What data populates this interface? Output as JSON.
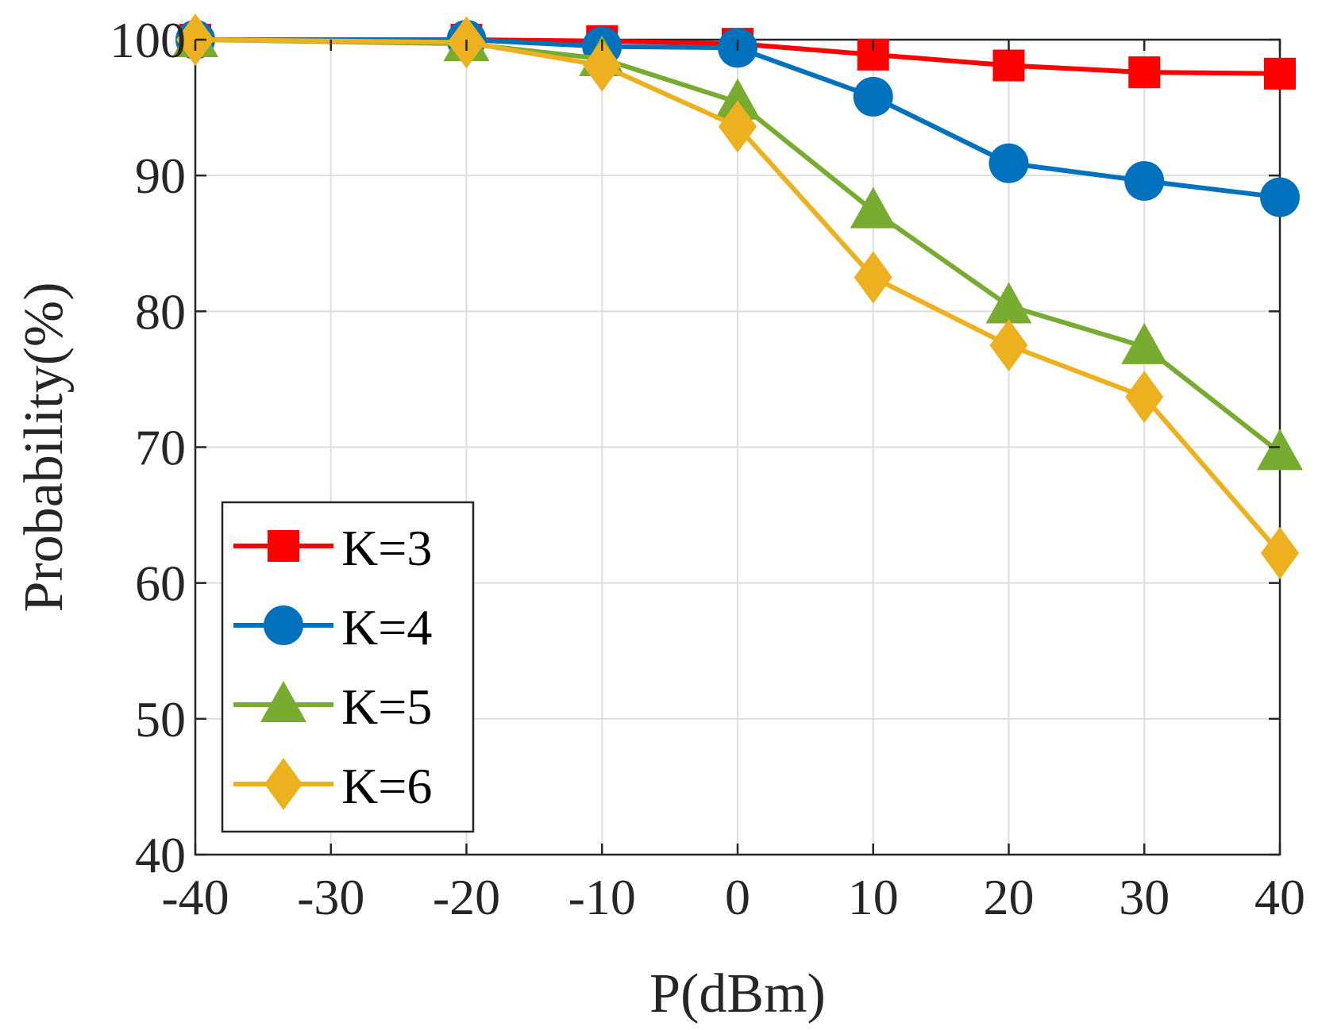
{
  "chart_data": {
    "type": "line",
    "title": "",
    "xlabel": "P(dBm)",
    "ylabel": "Probability(%)",
    "xlim": [
      -40,
      40
    ],
    "ylim": [
      40,
      100
    ],
    "xticks": [
      -40,
      -30,
      -20,
      -10,
      0,
      10,
      20,
      30,
      40
    ],
    "xtick_labels": [
      "-40",
      "-30",
      "-20",
      "-10",
      "0",
      "10",
      "20",
      "30",
      "40"
    ],
    "yticks": [
      40,
      50,
      60,
      70,
      80,
      90,
      100
    ],
    "ytick_labels": [
      "40",
      "50",
      "60",
      "70",
      "80",
      "90",
      "100"
    ],
    "grid": true,
    "legend_position": "bottom-left",
    "x": [
      -40,
      -20,
      -10,
      0,
      10,
      20,
      30,
      40
    ],
    "series": [
      {
        "name": "K=3",
        "color": "#ff0000",
        "marker": "square",
        "values": [
          100,
          100,
          99.9,
          99.7,
          98.9,
          98.1,
          97.6,
          97.5
        ]
      },
      {
        "name": "K=4",
        "color": "#0072bd",
        "marker": "circle",
        "values": [
          100,
          100,
          99.5,
          99.4,
          95.8,
          90.9,
          89.6,
          88.4
        ]
      },
      {
        "name": "K=5",
        "color": "#77ac30",
        "marker": "triangle",
        "values": [
          100,
          99.7,
          98.6,
          95.4,
          87.4,
          80.4,
          77.4,
          69.6
        ]
      },
      {
        "name": "K=6",
        "color": "#edb120",
        "marker": "diamond",
        "values": [
          100,
          99.8,
          98.1,
          93.6,
          82.5,
          77.5,
          73.7,
          62.2
        ]
      }
    ]
  }
}
